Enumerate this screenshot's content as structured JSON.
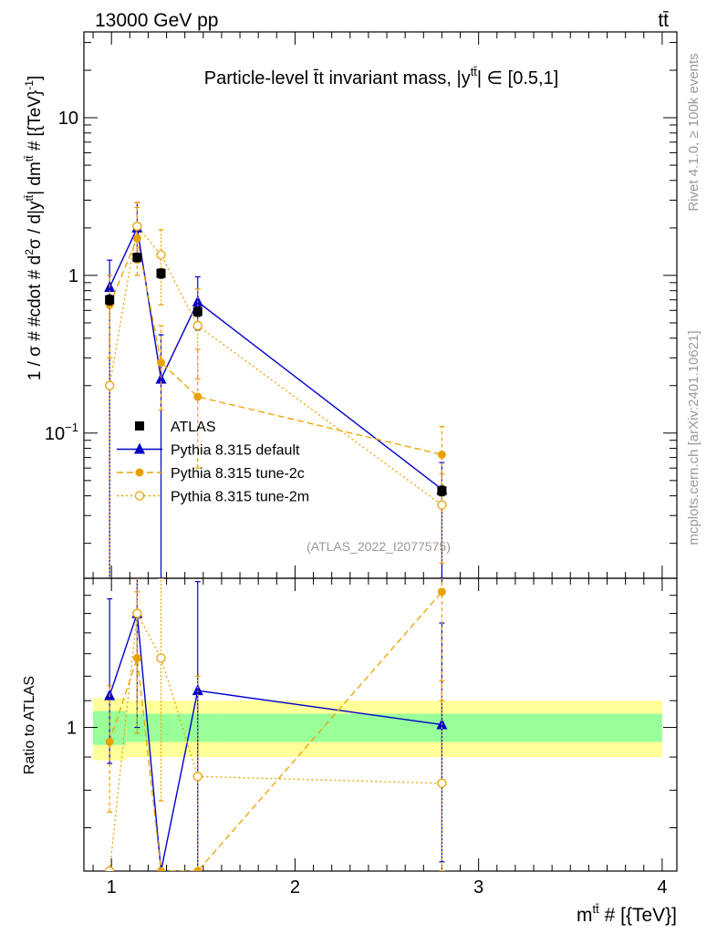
{
  "header": {
    "energy_label": "13000 GeV pp",
    "process_label": "tt̄"
  },
  "side_labels": {
    "rivet": "Rivet 4.1.0, ≥ 100k events",
    "mcplots": "mcplots.cern.ch [arXiv:2401.10621]"
  },
  "chart_data": {
    "type": "line",
    "title": "Particle-level t̄t invariant mass, |y^{tt̄}| ∈ [0.5,1]",
    "title_parts": {
      "main": "Particle-level t̄t invariant mass, |y",
      "sup": "tt̄",
      "end": "| ∈ [0.5,1]"
    },
    "ylabel": "1 / σ # #cdot # d²σ / d|y^{tt̄}| dm^{tt̄} # [{TeV}⁻¹]",
    "ylabel_parts": [
      "1 / σ # #cdot # d",
      "2",
      "σ / d|y",
      "tt̄",
      "| dm",
      "tt̄",
      " # [{TeV}",
      "-1",
      "]"
    ],
    "ratio_ylabel": "Ratio to ATLAS",
    "xlabel": "m^{tt̄} # [{TeV}]",
    "xlabel_parts": {
      "base": "m",
      "sup": "tt̄",
      "end": " # [{TeV}]"
    },
    "watermark": "(ATLAS_2022_I2077575)",
    "xlim": [
      0.85,
      4.08
    ],
    "ylim": [
      0.012,
      35
    ],
    "yscale": "log",
    "ratio_ylim": [
      0.6,
      1.7
    ],
    "x_ticks": [
      {
        "value": 1,
        "label": "1"
      },
      {
        "value": 2,
        "label": "2"
      },
      {
        "value": 3,
        "label": "3"
      },
      {
        "value": 4,
        "label": "4"
      }
    ],
    "y_ticks": [
      {
        "value": 10,
        "label": "10"
      },
      {
        "value": 1,
        "label": "1"
      },
      {
        "value": 0.1,
        "label": "10⁻¹",
        "base": "10",
        "exp": "−1"
      }
    ],
    "ratio_y_ticks": [
      {
        "value": 1,
        "label": "1"
      }
    ],
    "bins": [
      {
        "lo": 0.9,
        "hi": 1.08
      },
      {
        "lo": 1.08,
        "hi": 1.2
      },
      {
        "lo": 1.2,
        "hi": 1.35
      },
      {
        "lo": 1.35,
        "hi": 1.6
      },
      {
        "lo": 1.6,
        "hi": 4.0
      }
    ],
    "legend": {
      "placement": "left-middle"
    },
    "series": [
      {
        "name": "ATLAS",
        "style": "data",
        "color": "#000000",
        "marker": "square",
        "x": [
          0.99,
          1.14,
          1.27,
          1.47,
          2.8
        ],
        "y": [
          0.7,
          1.3,
          1.03,
          0.59,
          0.043
        ],
        "yerr": [
          0.05,
          0.08,
          0.07,
          0.04,
          0.003
        ],
        "band_inner": [
          0.06,
          0.05,
          0.05,
          0.05,
          0.05
        ],
        "band_outer": [
          0.11,
          0.1,
          0.1,
          0.1,
          0.1
        ]
      },
      {
        "name": "Pythia 8.315 default",
        "style": "solid",
        "color": "#0000cc",
        "marker": "triangle",
        "x": [
          0.99,
          1.14,
          1.27,
          1.47,
          2.8
        ],
        "y": [
          0.84,
          2.0,
          0.22,
          0.68,
          0.044
        ],
        "ylo": [
          0.012,
          1.3,
          0.012,
          0.45,
          0.012
        ],
        "yhi": [
          1.25,
          2.9,
          0.42,
          0.98,
          0.065
        ],
        "ratio": [
          1.12,
          1.5,
          0.21,
          1.14,
          1.01
        ],
        "ratio_lo": [
          0.88,
          1.0,
          0.03,
          0.6,
          0.62
        ],
        "ratio_hi": [
          1.58,
          2.0,
          0.45,
          1.68,
          1.45
        ]
      },
      {
        "name": "Pythia 8.315 tune-2c",
        "style": "dashed",
        "color": "#e8a200",
        "marker": "circle",
        "x": [
          0.99,
          1.14,
          1.27,
          1.47,
          2.8
        ],
        "y": [
          0.65,
          1.72,
          0.28,
          0.17,
          0.073
        ],
        "ylo": [
          0.3,
          1.0,
          0.14,
          0.06,
          0.035
        ],
        "yhi": [
          1.0,
          2.7,
          0.48,
          0.34,
          0.11
        ],
        "ratio": [
          0.95,
          1.28,
          0.27,
          0.3,
          1.62
        ],
        "ratio_lo": [
          0.74,
          0.98,
          0.12,
          0.09,
          1.1
        ],
        "ratio_hi": [
          1.16,
          1.62,
          0.46,
          0.55,
          1.8
        ]
      },
      {
        "name": "Pythia 8.315 tune-2m",
        "style": "dotted",
        "color": "#e8a200",
        "marker": "open-circle",
        "x": [
          0.99,
          1.14,
          1.27,
          1.47,
          2.8
        ],
        "y": [
          0.2,
          2.05,
          1.35,
          0.48,
          0.035
        ],
        "ylo": [
          0.012,
          1.2,
          0.65,
          0.22,
          0.015
        ],
        "yhi": [
          0.65,
          2.9,
          1.95,
          0.82,
          0.055
        ],
        "ratio": [
          0.22,
          1.5,
          1.28,
          0.84,
          0.82
        ],
        "ratio_lo": [
          0.05,
          0.98,
          0.77,
          0.45,
          0.46
        ],
        "ratio_hi": [
          0.5,
          1.85,
          1.7,
          1.2,
          1.18
        ]
      }
    ]
  }
}
